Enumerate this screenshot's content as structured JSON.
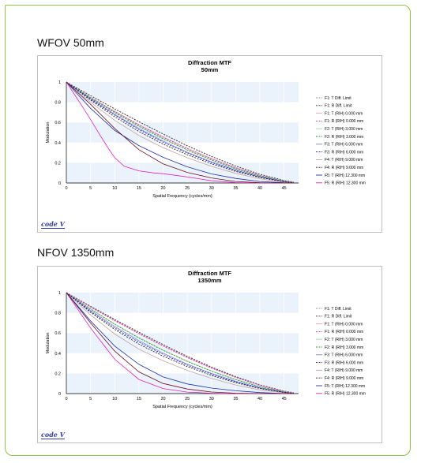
{
  "sections": [
    {
      "heading": "WFOV 50mm"
    },
    {
      "heading": "NFOV 1350mm"
    }
  ],
  "logo_text": "code V",
  "chart_data": [
    {
      "type": "line",
      "title": "Diffraction MTF",
      "subtitle": "50mm",
      "xlabel": "Spatial Frequency (cycles/mm)",
      "ylabel": "Modulation",
      "xlim": [
        0,
        48
      ],
      "ylim": [
        0,
        1
      ],
      "xticks": [
        0,
        5,
        10,
        15,
        20,
        25,
        30,
        35,
        40,
        45
      ],
      "yticks": [
        0,
        0.2,
        0.4,
        0.6,
        0.8,
        1
      ],
      "grid": true,
      "legend_position": "right",
      "series": [
        {
          "name": "F1: T Diff. Limit",
          "color": "#999999",
          "dash": true,
          "x": [
            0,
            5,
            10,
            15,
            20,
            25,
            30,
            35,
            40,
            45,
            47
          ],
          "y": [
            1,
            0.867,
            0.736,
            0.609,
            0.487,
            0.371,
            0.265,
            0.17,
            0.088,
            0.026,
            0.009
          ]
        },
        {
          "name": "F1: R Diff. Limit",
          "color": "#333333",
          "dash": true,
          "x": [
            0,
            5,
            10,
            15,
            20,
            25,
            30,
            35,
            40,
            45,
            47
          ],
          "y": [
            1,
            0.865,
            0.733,
            0.606,
            0.484,
            0.368,
            0.262,
            0.167,
            0.086,
            0.025,
            0.008
          ]
        },
        {
          "name": "F1: T (RIH) 0.000 mm",
          "color": "#f0a0c8",
          "dash": false,
          "x": [
            0,
            5,
            10,
            15,
            20,
            25,
            30,
            35,
            40,
            45,
            47
          ],
          "y": [
            1,
            0.85,
            0.71,
            0.578,
            0.457,
            0.344,
            0.243,
            0.152,
            0.076,
            0.02,
            0.005
          ]
        },
        {
          "name": "F1: R (RIH) 0.000 mm",
          "color": "#cc3399",
          "dash": true,
          "x": [
            0,
            5,
            10,
            15,
            20,
            25,
            30,
            35,
            40,
            45,
            47
          ],
          "y": [
            1,
            0.848,
            0.707,
            0.575,
            0.454,
            0.341,
            0.24,
            0.15,
            0.075,
            0.019,
            0.005
          ]
        },
        {
          "name": "F2: T (RIH) 3.000 mm",
          "color": "#a0d8a0",
          "dash": false,
          "x": [
            0,
            5,
            10,
            15,
            20,
            25,
            30,
            35,
            40,
            45,
            47
          ],
          "y": [
            1,
            0.845,
            0.7,
            0.565,
            0.442,
            0.33,
            0.23,
            0.142,
            0.07,
            0.018,
            0.004
          ]
        },
        {
          "name": "F2: R (RIH) 3.000 mm",
          "color": "#2e8b2e",
          "dash": true,
          "x": [
            0,
            5,
            10,
            15,
            20,
            25,
            30,
            35,
            40,
            45,
            47
          ],
          "y": [
            1,
            0.842,
            0.695,
            0.56,
            0.437,
            0.326,
            0.227,
            0.14,
            0.069,
            0.017,
            0.004
          ]
        },
        {
          "name": "F3: T (RIH) 6.000 mm",
          "color": "#8080e0",
          "dash": false,
          "x": [
            0,
            5,
            10,
            15,
            20,
            25,
            30,
            35,
            40,
            45,
            47
          ],
          "y": [
            1,
            0.835,
            0.68,
            0.54,
            0.415,
            0.305,
            0.21,
            0.128,
            0.062,
            0.015,
            0.003
          ]
        },
        {
          "name": "F3: R (RIH) 6.000 mm",
          "color": "#1c1c9c",
          "dash": true,
          "x": [
            0,
            5,
            10,
            15,
            20,
            25,
            30,
            35,
            40,
            45,
            47
          ],
          "y": [
            1,
            0.83,
            0.672,
            0.53,
            0.405,
            0.297,
            0.203,
            0.123,
            0.059,
            0.014,
            0.003
          ]
        },
        {
          "name": "F4: T (RIH) 9.000 mm",
          "color": "#c8a0a0",
          "dash": false,
          "x": [
            0,
            5,
            10,
            15,
            20,
            25,
            30,
            35,
            40,
            45,
            47
          ],
          "y": [
            1,
            0.8,
            0.62,
            0.47,
            0.35,
            0.25,
            0.165,
            0.095,
            0.042,
            0.009,
            0.002
          ]
        },
        {
          "name": "F4: R (RIH) 9.000 mm",
          "color": "#1a1a1a",
          "dash": true,
          "x": [
            0,
            5,
            10,
            15,
            20,
            25,
            30,
            35,
            40,
            45,
            47
          ],
          "y": [
            1,
            0.82,
            0.655,
            0.51,
            0.385,
            0.28,
            0.19,
            0.114,
            0.054,
            0.012,
            0.002
          ]
        },
        {
          "name": "F5: T (RIH) 12.300 mm",
          "color": "#1f2fb0",
          "dash": false,
          "x": [
            0,
            5,
            10,
            15,
            20,
            25,
            30,
            35,
            40,
            45,
            47
          ],
          "y": [
            1,
            0.74,
            0.52,
            0.37,
            0.255,
            0.16,
            0.09,
            0.045,
            0.015,
            0.002,
            0.0
          ]
        },
        {
          "name": "F5: R (RIH) 12.300 mm",
          "color": "#e020c0",
          "dash": false,
          "x": [
            0,
            3,
            5,
            7,
            9,
            10,
            12,
            15,
            18,
            20,
            25,
            30,
            35,
            40,
            45,
            47
          ],
          "y": [
            1,
            0.78,
            0.63,
            0.47,
            0.32,
            0.25,
            0.165,
            0.12,
            0.1,
            0.092,
            0.06,
            0.022,
            0.004,
            0.0,
            0.0,
            0.0
          ]
        },
        {
          "name": "F5: R (RIH) 12.300 mm (dark)",
          "color": "#6b1020",
          "dash": false,
          "x": [
            0,
            5,
            10,
            15,
            20,
            25,
            30,
            35,
            40,
            45,
            47
          ],
          "y": [
            1,
            0.78,
            0.54,
            0.33,
            0.19,
            0.105,
            0.05,
            0.015,
            0.002,
            0.0,
            0.0
          ]
        }
      ]
    },
    {
      "type": "line",
      "title": "Diffraction MTF",
      "subtitle": "1350mm",
      "xlabel": "Spatial Frequency (cycles/mm)",
      "ylabel": "Modulation",
      "xlim": [
        0,
        48
      ],
      "ylim": [
        0,
        1
      ],
      "xticks": [
        0,
        5,
        10,
        15,
        20,
        25,
        30,
        35,
        40,
        45
      ],
      "yticks": [
        0,
        0.2,
        0.4,
        0.6,
        0.8,
        1
      ],
      "grid": true,
      "legend_position": "right",
      "series": [
        {
          "name": "F1: T Diff. Limit",
          "color": "#999999",
          "dash": true,
          "x": [
            0,
            5,
            10,
            15,
            20,
            25,
            30,
            35,
            40,
            45,
            47
          ],
          "y": [
            1,
            0.867,
            0.736,
            0.609,
            0.487,
            0.371,
            0.265,
            0.17,
            0.088,
            0.026,
            0.009
          ]
        },
        {
          "name": "F1: R Diff. Limit",
          "color": "#333333",
          "dash": true,
          "x": [
            0,
            5,
            10,
            15,
            20,
            25,
            30,
            35,
            40,
            45,
            47
          ],
          "y": [
            1,
            0.865,
            0.733,
            0.606,
            0.484,
            0.368,
            0.262,
            0.167,
            0.086,
            0.025,
            0.008
          ]
        },
        {
          "name": "F1: T (RIH) 0.000 mm",
          "color": "#f0a0c8",
          "dash": false,
          "x": [
            0,
            5,
            10,
            15,
            20,
            25,
            30,
            35,
            40,
            45,
            47
          ],
          "y": [
            1,
            0.86,
            0.725,
            0.596,
            0.474,
            0.359,
            0.255,
            0.162,
            0.083,
            0.023,
            0.007
          ]
        },
        {
          "name": "F1: R (RIH) 0.000 mm",
          "color": "#cc3399",
          "dash": true,
          "x": [
            0,
            5,
            10,
            15,
            20,
            25,
            30,
            35,
            40,
            45,
            47
          ],
          "y": [
            1,
            0.858,
            0.722,
            0.593,
            0.471,
            0.356,
            0.252,
            0.16,
            0.082,
            0.022,
            0.007
          ]
        },
        {
          "name": "F2: T (RIH) 3.000 mm",
          "color": "#a0d8a0",
          "dash": false,
          "x": [
            0,
            5,
            10,
            15,
            20,
            25,
            30,
            35,
            40,
            45,
            47
          ],
          "y": [
            1,
            0.84,
            0.69,
            0.555,
            0.432,
            0.322,
            0.225,
            0.14,
            0.07,
            0.018,
            0.004
          ]
        },
        {
          "name": "F2: R (RIH) 3.000 mm",
          "color": "#2e8b2e",
          "dash": true,
          "x": [
            0,
            5,
            10,
            15,
            20,
            25,
            30,
            35,
            40,
            45,
            47
          ],
          "y": [
            1,
            0.838,
            0.686,
            0.55,
            0.428,
            0.318,
            0.222,
            0.138,
            0.068,
            0.017,
            0.004
          ]
        },
        {
          "name": "F3: T (RIH) 6.000 mm",
          "color": "#8080e0",
          "dash": false,
          "x": [
            0,
            5,
            10,
            15,
            20,
            25,
            30,
            35,
            40,
            45,
            47
          ],
          "y": [
            1,
            0.825,
            0.665,
            0.525,
            0.4,
            0.292,
            0.2,
            0.122,
            0.058,
            0.014,
            0.003
          ]
        },
        {
          "name": "F3: R (RIH) 6.000 mm",
          "color": "#1c1c9c",
          "dash": true,
          "x": [
            0,
            5,
            10,
            15,
            20,
            25,
            30,
            35,
            40,
            45,
            47
          ],
          "y": [
            1,
            0.815,
            0.65,
            0.51,
            0.388,
            0.282,
            0.192,
            0.116,
            0.055,
            0.013,
            0.002
          ]
        },
        {
          "name": "F4: T (RIH) 9.000 mm",
          "color": "#c8a0a0",
          "dash": false,
          "x": [
            0,
            5,
            10,
            15,
            20,
            25,
            30,
            35,
            40,
            45,
            47
          ],
          "y": [
            1,
            0.78,
            0.59,
            0.44,
            0.325,
            0.23,
            0.15,
            0.085,
            0.037,
            0.008,
            0.001
          ]
        },
        {
          "name": "F4: R (RIH) 9.000 mm",
          "color": "#1a1a1a",
          "dash": true,
          "x": [
            0,
            5,
            10,
            15,
            20,
            25,
            30,
            35,
            40,
            45,
            47
          ],
          "y": [
            1,
            0.805,
            0.635,
            0.49,
            0.37,
            0.268,
            0.18,
            0.108,
            0.05,
            0.011,
            0.002
          ]
        },
        {
          "name": "F5: T (RIH) 12.300 mm",
          "color": "#1f2fb0",
          "dash": false,
          "x": [
            0,
            5,
            10,
            15,
            20,
            25,
            30,
            35,
            40,
            45,
            47
          ],
          "y": [
            1,
            0.72,
            0.47,
            0.29,
            0.165,
            0.095,
            0.055,
            0.028,
            0.01,
            0.001,
            0.0
          ]
        },
        {
          "name": "F5: R (RIH) 12.300 mm",
          "color": "#e020c0",
          "dash": false,
          "x": [
            0,
            5,
            10,
            15,
            20,
            25,
            30,
            35,
            40,
            45,
            47
          ],
          "y": [
            1,
            0.65,
            0.34,
            0.14,
            0.05,
            0.015,
            0.004,
            0.0,
            0.0,
            0.0,
            0.0
          ]
        },
        {
          "name": "F5: R (RIH) 12.300 mm (dark)",
          "color": "#6b1020",
          "dash": false,
          "x": [
            0,
            5,
            10,
            15,
            20,
            25,
            30,
            35,
            40,
            45,
            47
          ],
          "y": [
            1,
            0.7,
            0.42,
            0.215,
            0.1,
            0.045,
            0.016,
            0.004,
            0.0,
            0.0,
            0.0
          ]
        }
      ]
    }
  ]
}
